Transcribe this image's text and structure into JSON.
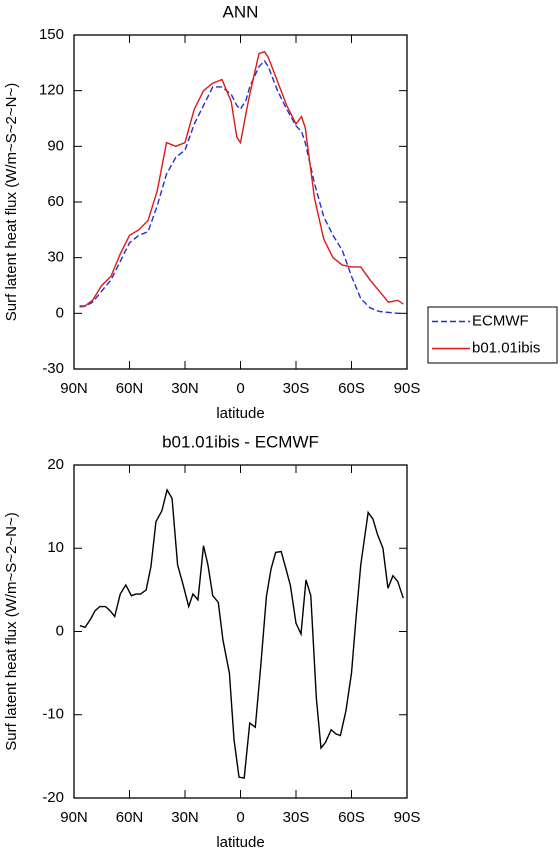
{
  "chart_data": [
    {
      "type": "line",
      "title": "ANN",
      "xlabel": "latitude",
      "ylabel": "Surf latent heat flux (W/m~S~2~N~)",
      "xlim": [
        90,
        -90
      ],
      "xticks": [
        {
          "value": 90,
          "label": "90N"
        },
        {
          "value": 60,
          "label": "60N"
        },
        {
          "value": 30,
          "label": "30N"
        },
        0,
        {
          "value": -30,
          "label": "30S"
        },
        {
          "value": -60,
          "label": "60S"
        },
        {
          "value": -90,
          "label": "90S"
        }
      ],
      "ylim": [
        -30,
        150
      ],
      "yticks": [
        -30,
        0,
        30,
        60,
        90,
        120,
        150
      ],
      "x": [
        87,
        84,
        80,
        75,
        70,
        65,
        60,
        55,
        50,
        45,
        40,
        35,
        30,
        25,
        20,
        15,
        10,
        5,
        2,
        0,
        -3,
        -5,
        -10,
        -13,
        -15,
        -20,
        -25,
        -30,
        -33,
        -35,
        -40,
        -45,
        -50,
        -55,
        -60,
        -65,
        -70,
        -75,
        -80,
        -85,
        -88
      ],
      "legend": "right",
      "series": [
        {
          "name": "ECMWF",
          "color": "#1f2fd0",
          "dashed": true,
          "values": [
            3.5,
            3.8,
            6,
            12,
            18,
            28,
            38,
            42,
            44,
            58,
            75,
            84,
            88,
            102,
            112,
            122,
            122,
            118,
            112,
            110,
            115,
            122,
            133,
            136,
            133,
            120,
            110,
            101,
            98,
            92,
            70,
            52,
            42,
            34,
            20,
            8,
            3,
            1,
            0.5,
            0,
            0
          ]
        },
        {
          "name": "b01.01ibis",
          "color": "#e01818",
          "dashed": false,
          "values": [
            4,
            4,
            7,
            15,
            20,
            32,
            42,
            45,
            50,
            66,
            92,
            90,
            92,
            110,
            120,
            124,
            126,
            114,
            95,
            92,
            108,
            118,
            140,
            141,
            138,
            125,
            112,
            102,
            106,
            100,
            62,
            40,
            30,
            26,
            25,
            25,
            18,
            12,
            6,
            7,
            5
          ]
        }
      ]
    },
    {
      "type": "line",
      "title": "b01.01ibis - ECMWF",
      "xlabel": "latitude",
      "ylabel": "Surf latent heat flux (W/m~S~2~N~)",
      "xlim": [
        90,
        -90
      ],
      "xticks": [
        {
          "value": 90,
          "label": "90N"
        },
        {
          "value": 60,
          "label": "60N"
        },
        {
          "value": 30,
          "label": "30N"
        },
        0,
        {
          "value": -30,
          "label": "30S"
        },
        {
          "value": -60,
          "label": "60S"
        },
        {
          "value": -90,
          "label": "90S"
        }
      ],
      "ylim": [
        -20,
        20
      ],
      "yticks": [
        -20,
        -10,
        0,
        10,
        20
      ],
      "color": "#000000",
      "x": [
        86.8,
        84,
        81,
        78.6,
        76,
        73,
        70.5,
        68,
        65,
        62,
        59,
        56.5,
        54,
        51,
        48.4,
        45.7,
        42.5,
        39.7,
        37,
        34,
        31,
        28,
        25.7,
        23,
        20,
        17.6,
        15,
        12,
        9.5,
        6,
        3.5,
        0.8,
        -2,
        -5,
        -8,
        -11,
        -14,
        -16.5,
        -19,
        -22,
        -24.6,
        -27,
        -30,
        -32.7,
        -35.4,
        -38,
        -41,
        -43.5,
        -46,
        -49,
        -51.6,
        -54,
        -57,
        -60,
        -62.4,
        -65,
        -69,
        -71.6,
        -74,
        -77,
        -79.7,
        -82.4,
        -85,
        -88
      ],
      "values": [
        0.7,
        0.5,
        1.5,
        2.5,
        3,
        3,
        2.5,
        1.8,
        4.5,
        5.6,
        4.3,
        4.5,
        4.5,
        5,
        7.8,
        13.2,
        14.5,
        17,
        16,
        8,
        5.6,
        3,
        4.5,
        3.8,
        10.3,
        8,
        4.3,
        3.5,
        -1,
        -5,
        -13,
        -17.5,
        -17.6,
        -11,
        -11.5,
        -4,
        4.2,
        7.5,
        9.5,
        9.6,
        7.5,
        5.5,
        1,
        -0.3,
        6.2,
        4.3,
        -8,
        -14,
        -13.3,
        -11.8,
        -12.3,
        -12.5,
        -9.5,
        -5,
        1.5,
        8,
        14.3,
        13.5,
        11.7,
        10,
        5.2,
        6.7,
        6,
        4
      ]
    }
  ]
}
